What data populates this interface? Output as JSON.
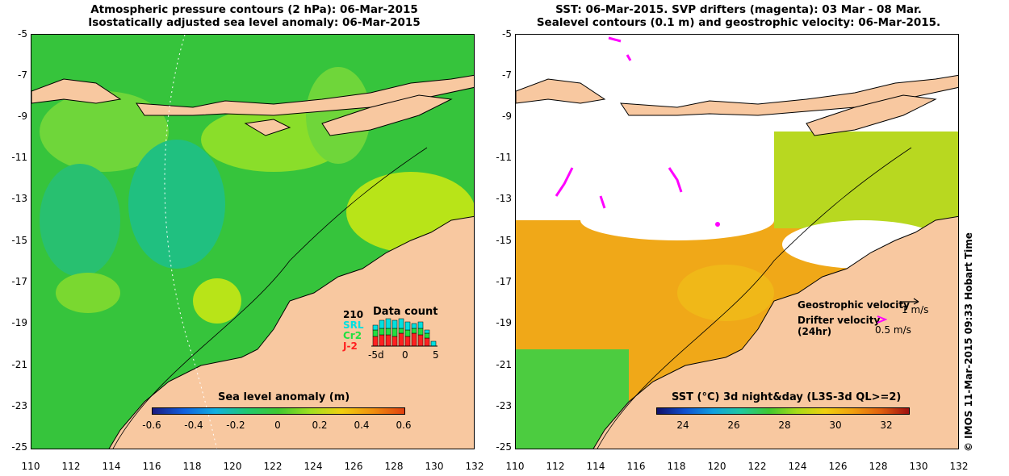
{
  "left_panel": {
    "title_line1": "Atmospheric pressure contours (2 hPa): 06-Mar-2015",
    "title_line2": "Isostatically adjusted sea level anomaly: 06-Mar-2015",
    "colorbar_label": "Sea level anomaly (m)",
    "colorbar_ticks": [
      "-0.6",
      "-0.4",
      "-0.2",
      "0",
      "0.2",
      "0.4",
      "0.6"
    ],
    "data_count": {
      "title": "Data count",
      "sat_210": "210",
      "sat_srl": "SRL",
      "sat_cr2": "Cr2",
      "sat_j2": "J-2",
      "axis_left": "-5d",
      "axis_mid": "0",
      "axis_right": "5"
    }
  },
  "right_panel": {
    "title_line1": "SST: 06-Mar-2015. SVP drifters (magenta): 03 Mar - 08 Mar.",
    "title_line2": "Sealevel contours (0.1 m) and geostrophic velocity: 06-Mar-2015.",
    "colorbar_label": "SST (°C) 3d night&day (L3S-3d QL>=2)",
    "colorbar_ticks": [
      "24",
      "26",
      "28",
      "30",
      "32"
    ],
    "legend_geo": "Geostrophic velocity",
    "legend_geo_scale": "1 m/s",
    "legend_drifter": "Drifter velocity",
    "legend_drifter_period": "(24hr)",
    "legend_drifter_scale": "0.5 m/s"
  },
  "axes": {
    "y_ticks": [
      "-5",
      "-7",
      "-9",
      "-11",
      "-13",
      "-15",
      "-17",
      "-19",
      "-21",
      "-23",
      "-25"
    ],
    "x_ticks": [
      "110",
      "112",
      "114",
      "116",
      "118",
      "120",
      "122",
      "124",
      "126",
      "128",
      "130",
      "132"
    ]
  },
  "credit": "© IMOS 11-Mar-2015 09:33 Hobart Time",
  "colors": {
    "land": "#f8c8a0",
    "sea_green": "#3cc840",
    "sst_orange": "#f0a010",
    "drifter": "#ff00ff",
    "coastline": "#000000"
  }
}
